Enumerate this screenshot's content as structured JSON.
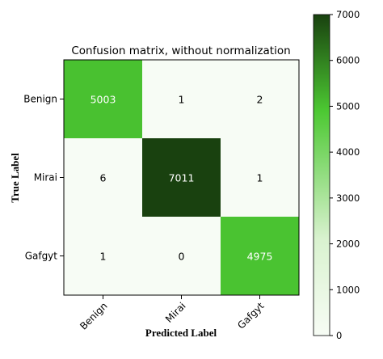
{
  "chart_data": {
    "type": "heatmap",
    "title": "Confusion matrix, without normalization",
    "xlabel": "Predicted Label",
    "ylabel": "True Label",
    "x_categories": [
      "Benign",
      "Mirai",
      "Gafgyt"
    ],
    "y_categories": [
      "Benign",
      "Mirai",
      "Gafgyt"
    ],
    "matrix": [
      [
        5003,
        1,
        2
      ],
      [
        6,
        7011,
        1
      ],
      [
        1,
        0,
        4975
      ]
    ],
    "colorbar": {
      "min": 0,
      "max": 7000,
      "ticks": [
        0,
        1000,
        2000,
        3000,
        4000,
        5000,
        6000,
        7000
      ],
      "color_low": "#f7fcf5",
      "color_mid": "#4cc832",
      "color_high": "#19410f"
    }
  }
}
